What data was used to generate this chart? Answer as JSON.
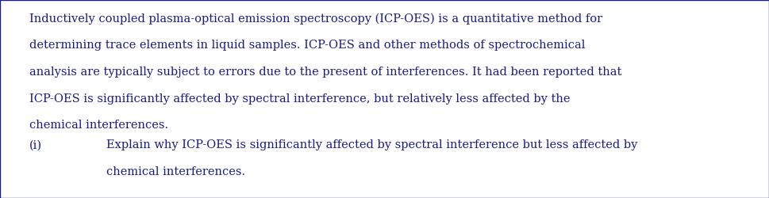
{
  "background_color": "#ffffff",
  "text_color": "#1a1a8c",
  "border_color": "#1a1a8c",
  "font_family": "DejaVu Serif",
  "font_size_body": 10.5,
  "font_size_question": 10.5,
  "paragraph_lines": [
    "Inductively coupled plasma-optical emission spectroscopy (ICP-OES) is a quantitative method for",
    "determining trace elements in liquid samples. ICP-OES and other methods of spectrochemical",
    "analysis are typically subject to errors due to the present of interferences. It had been reported that",
    "ICP-OES is significantly affected by spectral interference, but relatively less affected by the",
    "chemical interferences."
  ],
  "question_label": "(i)",
  "question_line1": "Explain why ICP-OES is significantly affected by spectral interference but less affected by",
  "question_line2": "chemical interferences.",
  "fig_width": 9.69,
  "fig_height": 2.5,
  "dpi": 100,
  "border_linewidth": 1.0
}
